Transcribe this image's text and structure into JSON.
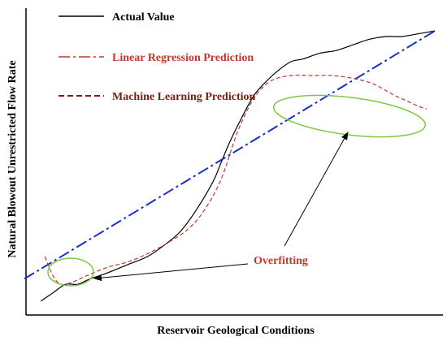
{
  "chart_data": {
    "type": "line",
    "xlabel": "Reservoir Geological Conditions",
    "ylabel": "Natural Blowout Unrestricted Flow Rate",
    "xlim": [
      0,
      100
    ],
    "ylim": [
      0,
      100
    ],
    "grid": false,
    "legend_position": "top-left",
    "series": [
      {
        "name": "Actual Value",
        "color": "#000000",
        "style": "solid",
        "x": [
          4,
          7,
          10,
          13,
          16,
          20,
          25,
          30,
          34,
          38,
          42,
          46,
          48,
          50,
          53,
          56,
          59,
          62,
          65,
          68,
          72,
          76,
          80,
          84,
          88,
          92,
          96,
          100
        ],
        "y": [
          5,
          8,
          11,
          11,
          13,
          15,
          18,
          21,
          25,
          30,
          38,
          48,
          55,
          62,
          71,
          79,
          84,
          88,
          91,
          92,
          94,
          95,
          97,
          99,
          100,
          100,
          101,
          102
        ]
      },
      {
        "name": "Linear Regression Prediction",
        "color": "#1a2ecc",
        "style": "dashdot",
        "x": [
          0,
          100
        ],
        "y": [
          13,
          102
        ]
      },
      {
        "name": "Machine Learning Prediction",
        "color": "#c0392b",
        "style": "dashed",
        "x": [
          5,
          7,
          9,
          12,
          15,
          20,
          25,
          30,
          35,
          40,
          44,
          48,
          52,
          56,
          60,
          65,
          70,
          75,
          80,
          85,
          90,
          93,
          96,
          98
        ],
        "y": [
          21,
          14,
          11,
          12,
          14,
          17,
          19,
          22,
          26,
          31,
          38,
          49,
          66,
          78,
          84,
          86,
          86,
          86,
          85,
          83,
          79,
          77,
          75,
          74
        ]
      }
    ],
    "annotations": [
      {
        "text": "Overfitting",
        "color": "#c0392b"
      }
    ]
  }
}
